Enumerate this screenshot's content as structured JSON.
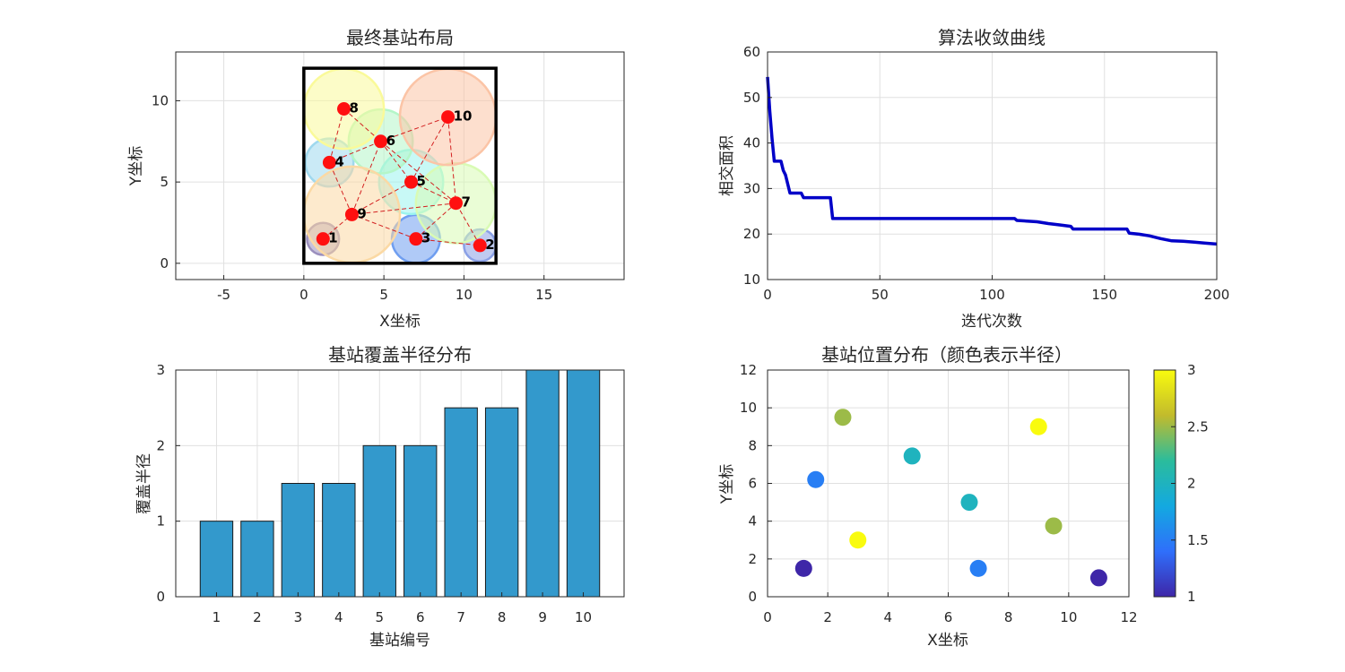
{
  "chart_data": [
    {
      "type": "scatter",
      "title": "最终基站布局",
      "xlabel": "X坐标",
      "ylabel": "Y坐标",
      "xlim": [
        -8,
        20
      ],
      "ylim": [
        -1,
        13
      ],
      "xticks": [
        "-5",
        "0",
        "5",
        "10",
        "15"
      ],
      "yticks": [
        "0",
        "5",
        "10"
      ],
      "grid": true,
      "region": {
        "x": [
          0,
          12
        ],
        "y": [
          0,
          12
        ]
      },
      "stations": [
        {
          "id": "1",
          "x": 1.2,
          "y": 1.5,
          "r": 1.0,
          "color": "#9b8fbd"
        },
        {
          "id": "2",
          "x": 11.0,
          "y": 1.1,
          "r": 1.0,
          "color": "#8aa0e6"
        },
        {
          "id": "3",
          "x": 7.0,
          "y": 1.5,
          "r": 1.5,
          "color": "#6f9ef0"
        },
        {
          "id": "4",
          "x": 1.6,
          "y": 6.2,
          "r": 1.5,
          "color": "#9fd8ee"
        },
        {
          "id": "5",
          "x": 6.7,
          "y": 5.0,
          "r": 2.0,
          "color": "#9bf4ee"
        },
        {
          "id": "6",
          "x": 4.8,
          "y": 7.5,
          "r": 2.0,
          "color": "#b4f6c8"
        },
        {
          "id": "7",
          "x": 9.5,
          "y": 3.7,
          "r": 2.5,
          "color": "#d9fbb4"
        },
        {
          "id": "8",
          "x": 2.5,
          "y": 9.5,
          "r": 2.5,
          "color": "#fafa9a"
        },
        {
          "id": "9",
          "x": 3.0,
          "y": 3.0,
          "r": 3.0,
          "color": "#fbd9a4"
        },
        {
          "id": "10",
          "x": 9.0,
          "y": 9.0,
          "r": 3.0,
          "color": "#fbc4a6"
        }
      ],
      "links": [
        [
          1,
          9
        ],
        [
          9,
          3
        ],
        [
          3,
          2
        ],
        [
          3,
          7
        ],
        [
          2,
          7
        ],
        [
          9,
          4
        ],
        [
          9,
          6
        ],
        [
          4,
          8
        ],
        [
          4,
          6
        ],
        [
          8,
          6
        ],
        [
          6,
          10
        ],
        [
          10,
          5
        ],
        [
          10,
          7
        ],
        [
          6,
          5
        ],
        [
          5,
          7
        ],
        [
          5,
          9
        ],
        [
          9,
          7
        ],
        [
          6,
          7
        ]
      ]
    },
    {
      "type": "line",
      "title": "算法收敛曲线",
      "xlabel": "迭代次数",
      "ylabel": "相交面积",
      "xlim": [
        0,
        200
      ],
      "ylim": [
        10,
        60
      ],
      "xticks": [
        "0",
        "50",
        "100",
        "150",
        "200"
      ],
      "yticks": [
        "10",
        "20",
        "30",
        "40",
        "50",
        "60"
      ],
      "grid": true,
      "series": [
        {
          "color": "#0000c8",
          "x": [
            0,
            1,
            2,
            3,
            4,
            5,
            6,
            7,
            8,
            9,
            10,
            12,
            14,
            15,
            16,
            18,
            20,
            25,
            28,
            29,
            30,
            40,
            60,
            80,
            100,
            110,
            111,
            120,
            125,
            130,
            135,
            136,
            150,
            160,
            161,
            165,
            170,
            175,
            180,
            185,
            190,
            195,
            200
          ],
          "y": [
            54.5,
            47,
            41,
            36,
            36,
            36,
            36,
            34,
            33,
            31,
            29,
            29,
            29,
            29,
            28,
            28,
            28,
            28,
            28,
            23.4,
            23.4,
            23.4,
            23.4,
            23.4,
            23.4,
            23.4,
            23.0,
            22.7,
            22.3,
            22.0,
            21.7,
            21.1,
            21.1,
            21.1,
            20.2,
            20.0,
            19.6,
            19.0,
            18.5,
            18.4,
            18.2,
            18.0,
            17.8
          ]
        }
      ]
    },
    {
      "type": "bar",
      "title": "基站覆盖半径分布",
      "xlabel": "基站编号",
      "ylabel": "覆盖半径",
      "categories": [
        "1",
        "2",
        "3",
        "4",
        "5",
        "6",
        "7",
        "8",
        "9",
        "10"
      ],
      "values": [
        1,
        1,
        1.5,
        1.5,
        2,
        2,
        2.5,
        2.5,
        3,
        3
      ],
      "ylim": [
        0,
        3
      ],
      "yticks": [
        "0",
        "1",
        "2",
        "3"
      ],
      "grid": true,
      "color": "#3399cc"
    },
    {
      "type": "scatter",
      "title": "基站位置分布（颜色表示半径）",
      "xlabel": "X坐标",
      "ylabel": "Y坐标",
      "xlim": [
        0,
        12
      ],
      "ylim": [
        0,
        12
      ],
      "xticks": [
        "0",
        "2",
        "4",
        "6",
        "8",
        "10",
        "12"
      ],
      "yticks": [
        "0",
        "2",
        "4",
        "6",
        "8",
        "10",
        "12"
      ],
      "grid": true,
      "colorbar": {
        "min": 1,
        "max": 3,
        "ticks": [
          "1",
          "1.5",
          "2",
          "2.5",
          "3"
        ]
      },
      "points": [
        {
          "x": 1.2,
          "y": 1.5,
          "c": 1.0
        },
        {
          "x": 11.0,
          "y": 1.0,
          "c": 1.0
        },
        {
          "x": 7.0,
          "y": 1.5,
          "c": 1.5
        },
        {
          "x": 1.6,
          "y": 6.2,
          "c": 1.5
        },
        {
          "x": 6.7,
          "y": 5.0,
          "c": 2.0
        },
        {
          "x": 4.8,
          "y": 7.45,
          "c": 2.0
        },
        {
          "x": 9.5,
          "y": 3.75,
          "c": 2.5
        },
        {
          "x": 2.5,
          "y": 9.5,
          "c": 2.5
        },
        {
          "x": 3.0,
          "y": 3.0,
          "c": 3.0
        },
        {
          "x": 9.0,
          "y": 9.0,
          "c": 3.0
        }
      ]
    }
  ]
}
